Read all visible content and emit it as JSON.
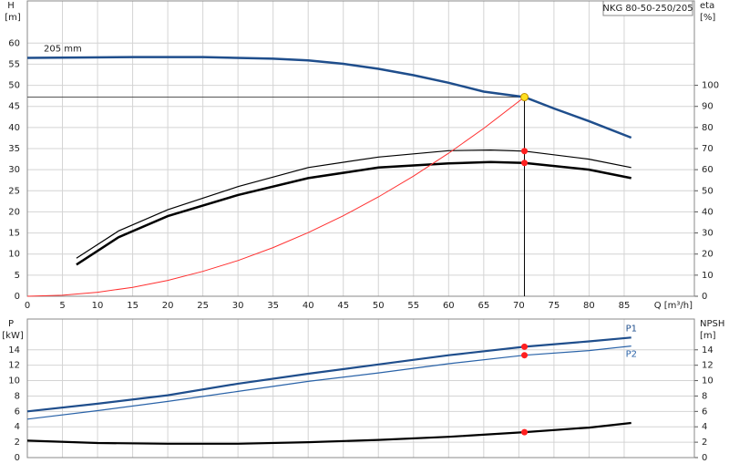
{
  "chart_data": [
    {
      "type": "line",
      "box": "NKG 80-50-250/205",
      "y_label": "H",
      "y_unit": "[m]",
      "y2_label": "eta",
      "y2_unit": "[%]",
      "x_label": "Q [m³/h]",
      "xlim": [
        0,
        95
      ],
      "xticks": [
        0,
        5,
        10,
        15,
        20,
        25,
        30,
        35,
        40,
        45,
        50,
        55,
        60,
        65,
        70,
        75,
        80,
        85
      ],
      "ylim": [
        0,
        70
      ],
      "yticks": [
        0,
        5,
        10,
        15,
        20,
        25,
        30,
        35,
        40,
        45,
        50,
        55,
        60
      ],
      "y2lim": [
        0,
        140
      ],
      "y2ticks": [
        0,
        10,
        20,
        30,
        40,
        50,
        60,
        70,
        80,
        90,
        100
      ],
      "grid": true,
      "duty_point": {
        "q": 70.8,
        "h": 47.2
      },
      "series": [
        {
          "name": "205 mm",
          "color": "#1f4e8c",
          "width": 2.5,
          "x": [
            0,
            9,
            15,
            25,
            35,
            40,
            45,
            50,
            55,
            60,
            65,
            70.8,
            75,
            80,
            86
          ],
          "values": [
            56.5,
            56.6,
            56.7,
            56.7,
            56.3,
            55.9,
            55.1,
            53.9,
            52.4,
            50.6,
            48.5,
            47.2,
            44.5,
            41.5,
            37.6
          ]
        },
        {
          "color": "#000000",
          "width": 1.2,
          "axis": "y2",
          "duty_marker": true,
          "x": [
            7,
            13,
            20,
            30,
            40,
            50,
            60,
            66,
            70.8,
            80,
            86
          ],
          "values": [
            18,
            31,
            41,
            52,
            61,
            66,
            69,
            69.3,
            68.8,
            65,
            61
          ]
        },
        {
          "color": "#000000",
          "width": 2.5,
          "axis": "y2",
          "duty_marker": true,
          "x": [
            7,
            13,
            20,
            30,
            40,
            50,
            60,
            66,
            70.8,
            80,
            86
          ],
          "values": [
            15,
            28,
            38,
            48,
            56,
            61,
            63,
            63.6,
            63.2,
            60,
            56
          ]
        },
        {
          "color": "#ff3030",
          "width": 1,
          "x": [
            0,
            5,
            10,
            15,
            20,
            25,
            30,
            35,
            40,
            45,
            50,
            55,
            60,
            65,
            70.8
          ],
          "values": [
            0,
            0.24,
            0.94,
            2.12,
            3.77,
            5.89,
            8.47,
            11.53,
            15.07,
            19.07,
            23.54,
            28.48,
            33.9,
            39.78,
            47.2
          ]
        }
      ]
    },
    {
      "type": "line",
      "y_label": "P",
      "y_unit": "[kW]",
      "y2_label": "NPSH",
      "y2_unit": "[m]",
      "xlim": [
        0,
        95
      ],
      "xticks": [
        0,
        5,
        10,
        15,
        20,
        25,
        30,
        35,
        40,
        45,
        50,
        55,
        60,
        65,
        70,
        75,
        80,
        85
      ],
      "ylim": [
        0,
        18
      ],
      "yticks": [
        0,
        2,
        4,
        6,
        8,
        10,
        12,
        14
      ],
      "y2lim": [
        0,
        18
      ],
      "y2ticks": [
        0,
        2,
        4,
        6,
        8,
        10,
        12,
        14
      ],
      "grid": true,
      "duty_point": {
        "q": 70.8
      },
      "series": [
        {
          "name": "P1",
          "color": "#1f4e8c",
          "width": 2.2,
          "duty_marker": true,
          "x": [
            0,
            10,
            20,
            30,
            40,
            50,
            60,
            70.8,
            80,
            86
          ],
          "values": [
            6,
            7,
            8.1,
            9.6,
            10.9,
            12.1,
            13.3,
            14.4,
            15.1,
            15.6
          ]
        },
        {
          "name": "P2",
          "color": "#2a63a8",
          "width": 1.2,
          "duty_marker": true,
          "x": [
            0,
            10,
            20,
            30,
            40,
            50,
            60,
            70.8,
            80,
            86
          ],
          "values": [
            5,
            6.1,
            7.3,
            8.6,
            9.9,
            11,
            12.2,
            13.3,
            13.9,
            14.5
          ]
        },
        {
          "color": "#000000",
          "width": 2.2,
          "axis": "y2",
          "duty_marker": true,
          "x": [
            0,
            10,
            20,
            30,
            40,
            50,
            60,
            70.8,
            80,
            86
          ],
          "values": [
            2.2,
            1.9,
            1.8,
            1.8,
            2,
            2.3,
            2.7,
            3.3,
            3.9,
            4.5
          ]
        }
      ]
    }
  ]
}
